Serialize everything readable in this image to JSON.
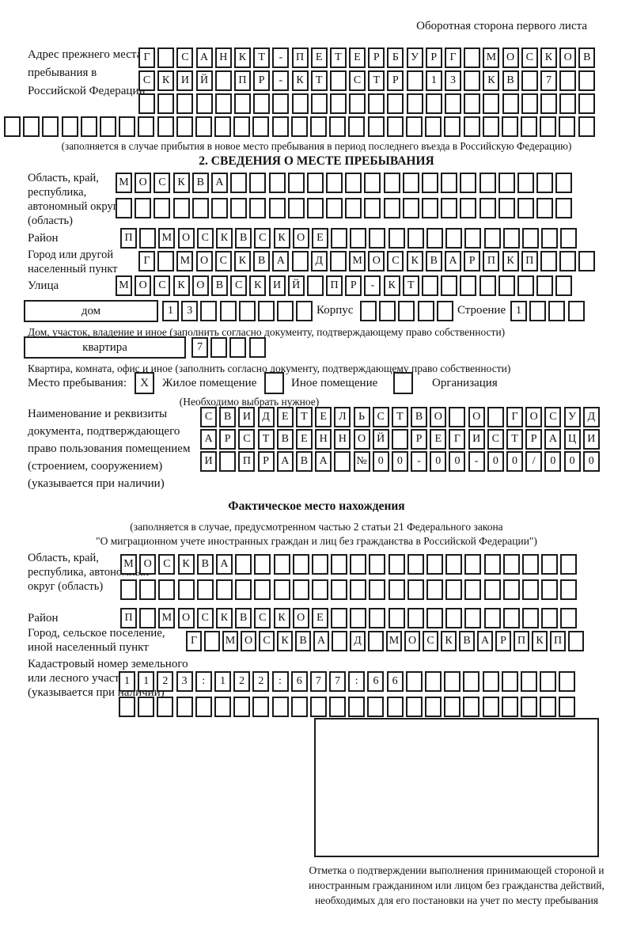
{
  "header": {
    "note": "Оборотная сторона первого листа"
  },
  "prev_address": {
    "label": "Адрес прежнего места пребывания в Российской Федерации",
    "row1": {
      "text": "Г САНКТ-ПЕТЕРБУРГ МОСКОВ",
      "len": 24
    },
    "row2": {
      "text": "СКИЙ ПР-КТ СТР 13 КВ 7",
      "len": 24
    },
    "row3": {
      "text": "",
      "len": 24
    },
    "row4": {
      "text": "",
      "len": 31
    },
    "note": "(заполняется в случае прибытия в новое место пребывания в период последнего въезда в Российскую Федерацию)"
  },
  "section2": {
    "title": "2. СВЕДЕНИЯ О МЕСТЕ ПРЕБЫВАНИЯ",
    "oblast": {
      "label": "Область, край, республика, автономный округ (область)",
      "row1": {
        "text": "МОСКВА",
        "len": 24
      },
      "row2": {
        "text": "",
        "len": 24
      }
    },
    "rayon": {
      "label": "Район",
      "row": {
        "text": "П МОСКВСКОЕ",
        "len": 24
      }
    },
    "gorod": {
      "label": "Город или другой населенный пункт",
      "row": {
        "text": "Г МОСКВА Д МОСКВАРПКП",
        "len": 24
      }
    },
    "ulitsa": {
      "label": "Улица",
      "row": {
        "text": "МОСКОВСКИЙ ПР-КТ",
        "len": 24
      }
    },
    "dom": {
      "box_label": "дом",
      "cells": {
        "text": "13",
        "len": 8
      },
      "korpus_label": "Корпус",
      "korpus_cells": {
        "text": "",
        "len": 5
      },
      "stroenie_label": "Строение",
      "stroenie_cells": {
        "text": "1",
        "len": 4
      },
      "note": "Дом, участок, владение и иное (заполнить согласно документу, подтверждающему право собственности)"
    },
    "kvartira": {
      "box_label": "квартира",
      "cells": {
        "text": "7",
        "len": 4
      },
      "note": "Квартира, комната, офис и иное (заполнить согласно документу, подтверждающему право собственности)"
    },
    "mesto": {
      "label": "Место пребывания:",
      "options": [
        {
          "label": "Жилое помещение",
          "mark": "X"
        },
        {
          "label": "Иное помещение",
          "mark": ""
        },
        {
          "label": "Организация",
          "mark": ""
        }
      ],
      "note": "(Необходимо выбрать нужное)"
    },
    "document": {
      "label": "Наименование и реквизиты документа, подтверждающего право пользования помещением (строением, сооружением) (указывается при наличии)",
      "row1": {
        "text": "СВИДЕТЕЛЬСТВО О ГОСУД",
        "len": 21
      },
      "row2": {
        "text": "АРСТВЕННОЙ РЕГИСТРАЦИ",
        "len": 21
      },
      "row3": {
        "text": "И ПРАВА №00-00-00/000",
        "len": 21
      }
    }
  },
  "fact": {
    "title": "Фактическое место нахождения",
    "note1": "(заполняется в случае, предусмотренном частью 2 статьи 21 Федерального закона",
    "note2": "\"О миграционном учете иностранных граждан и лиц без гражданства в Российской Федерации\")",
    "oblast": {
      "label": "Область, край, республика, автономный округ (область)",
      "row1": {
        "text": "МОСКВА",
        "len": 24
      },
      "row2": {
        "text": "",
        "len": 24
      }
    },
    "rayon": {
      "label": "Район",
      "row": {
        "text": "П МОСКВСКОЕ",
        "len": 24
      }
    },
    "gorod": {
      "label": "Город, сельское поселение, иной населенный пункт",
      "row": {
        "text": "Г МОСКВА Д МОСКВАРПКП",
        "len": 22
      }
    },
    "kadastr": {
      "label": "Кадастровый номер земельного или лесного участка (указывается при наличии)",
      "row1": {
        "text": "1123:122:677:66",
        "len": 24
      },
      "row2": {
        "text": "",
        "len": 24
      }
    },
    "stamp_caption": "Отметка о подтверждении выполнения принимающей стороной и иностранным гражданином или лицом без гражданства действий, необходимых для его постановки на учет по месту пребывания"
  }
}
